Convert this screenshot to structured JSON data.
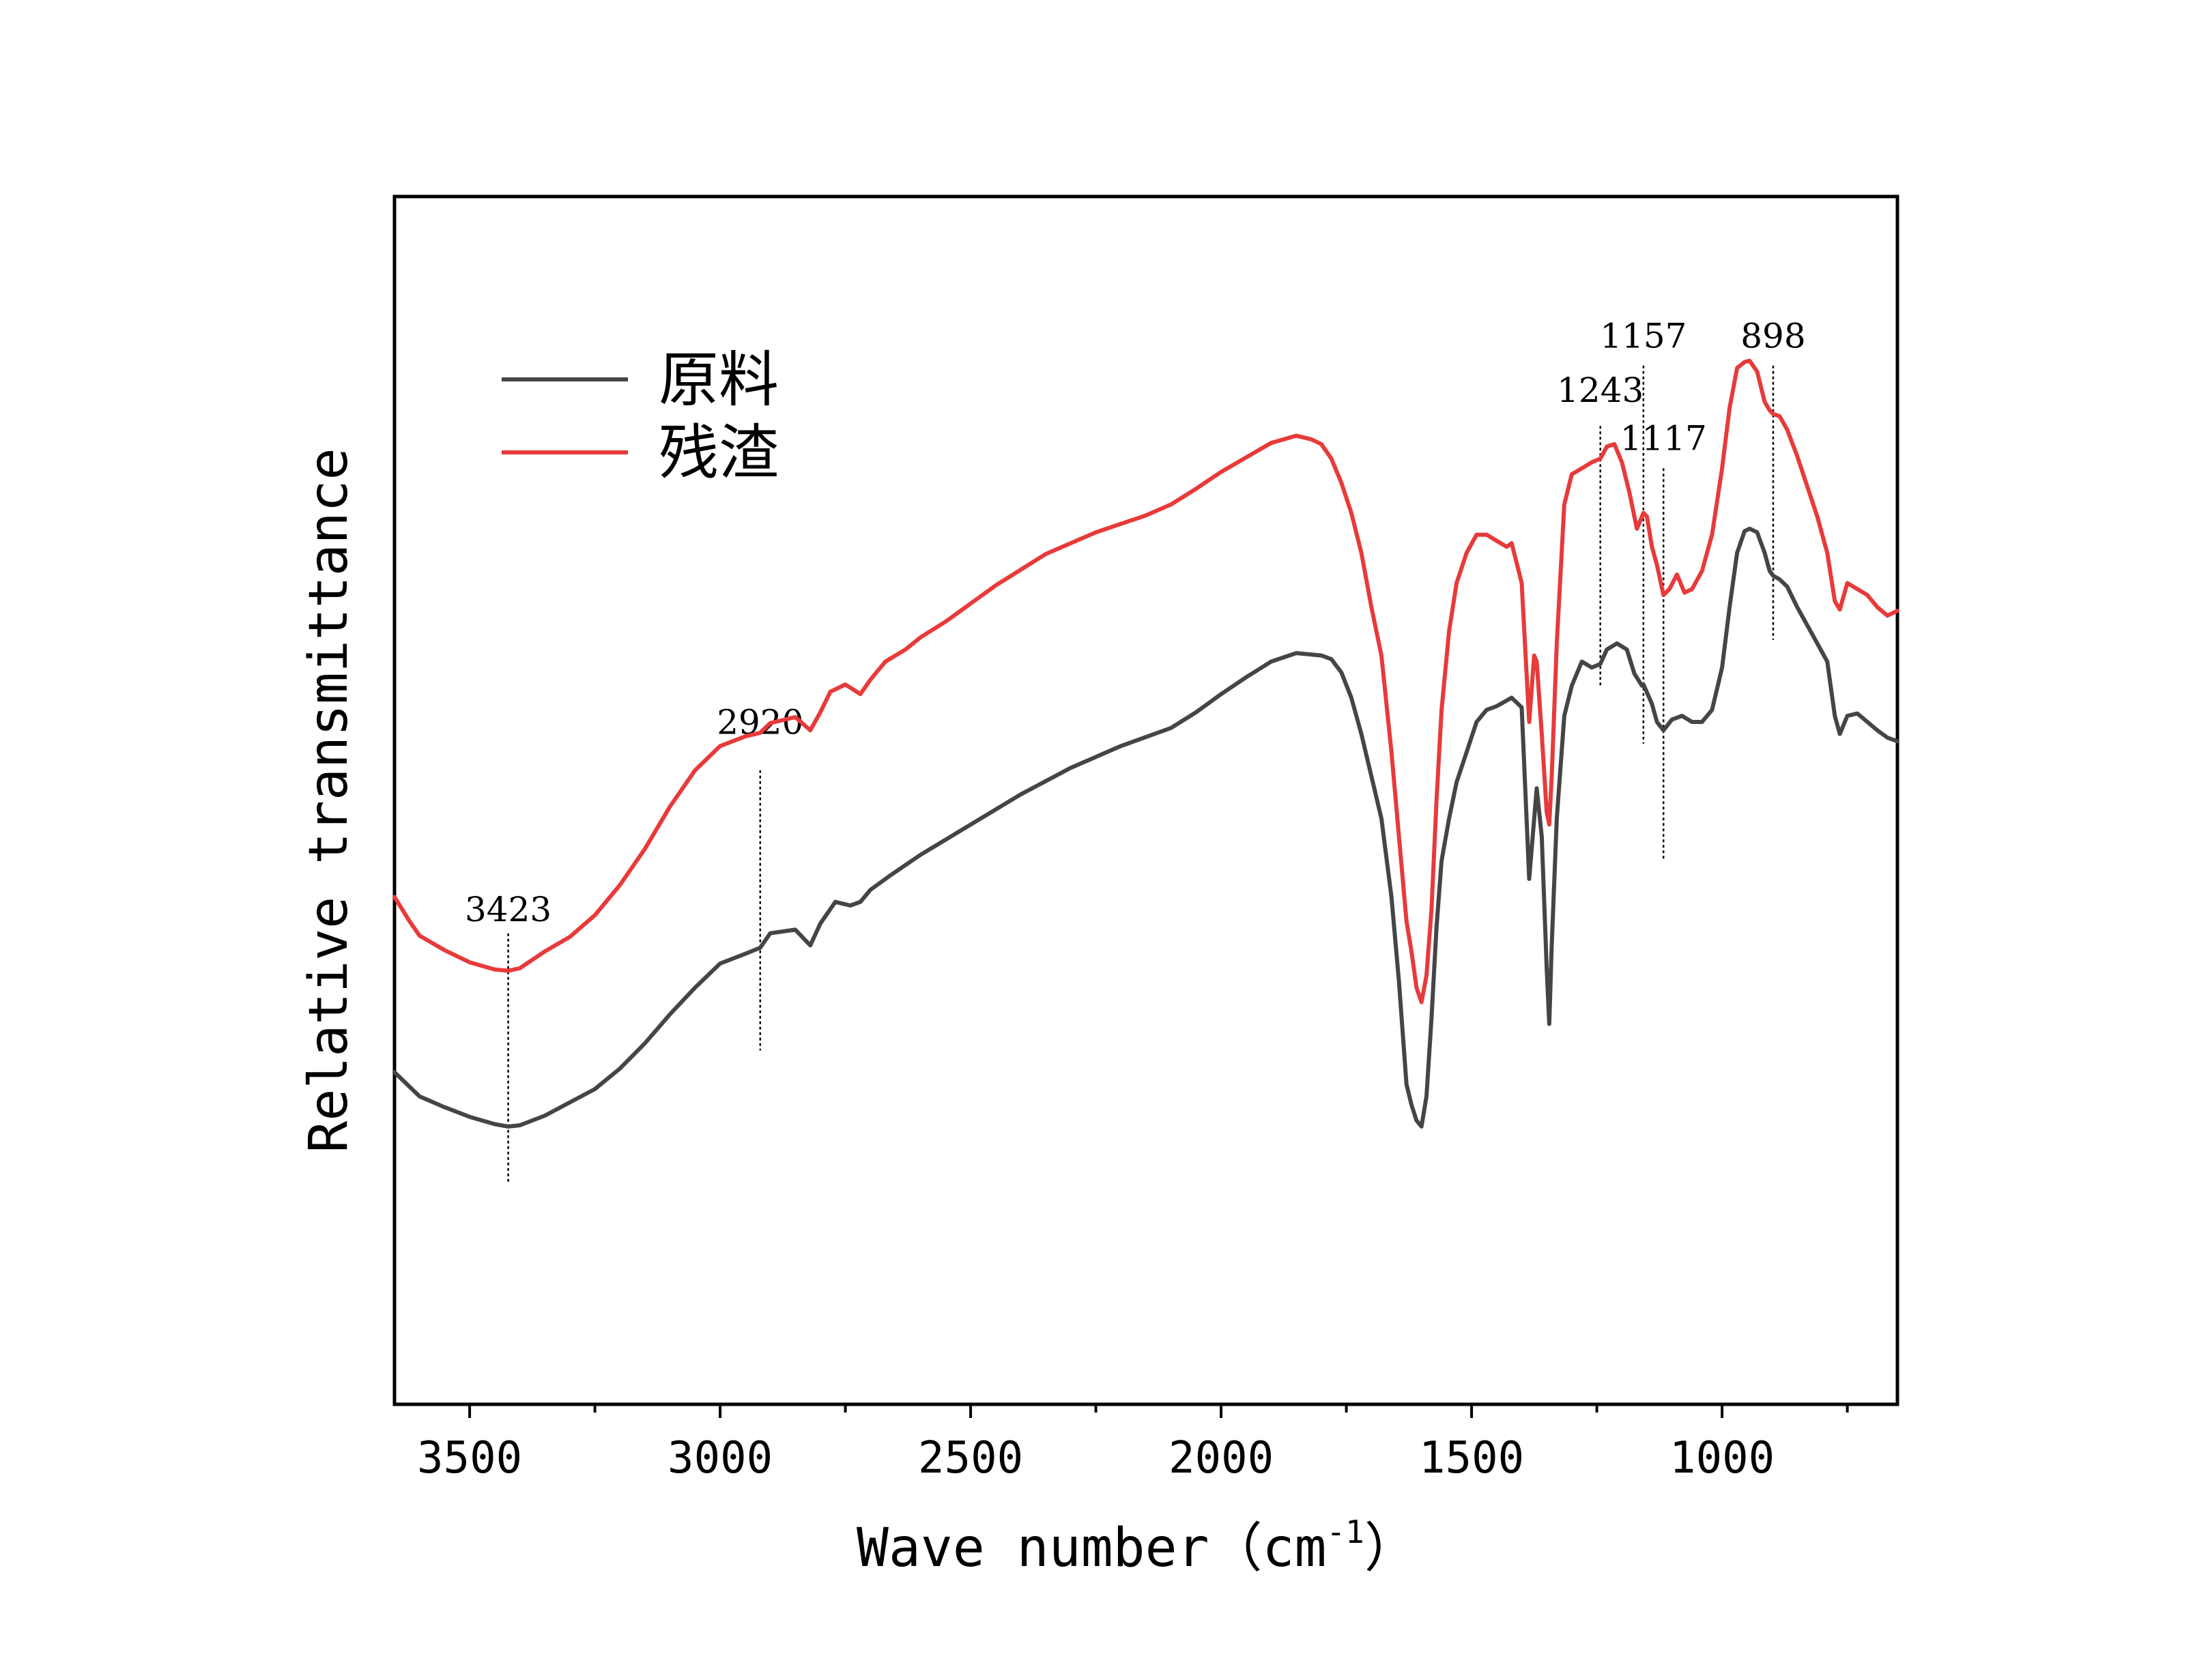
{
  "chart_data": {
    "type": "line",
    "title": "",
    "xlabel": "Wave number（cm",
    "xlabel_unit_sup": "-1",
    "xlabel_close": "）",
    "ylabel": "Relative transmittance",
    "xlim": [
      3650,
      650
    ],
    "ylim": [
      0,
      100
    ],
    "x_reversed": true,
    "y_ticks_shown": false,
    "grid": false,
    "legend_position": "upper-left",
    "x_ticks": [
      {
        "value": 3500,
        "label": "3500"
      },
      {
        "value": 3000,
        "label": "3000"
      },
      {
        "value": 2500,
        "label": "2500"
      },
      {
        "value": 2000,
        "label": "2000"
      },
      {
        "value": 1500,
        "label": "1500"
      },
      {
        "value": 1000,
        "label": "1000"
      }
    ],
    "minor_x_ticks": [
      3250,
      2750,
      2250,
      1750,
      1250,
      750
    ],
    "series": [
      {
        "name": "原料",
        "color": "#454545",
        "points": [
          [
            3650,
            27.5
          ],
          [
            3600,
            25.5
          ],
          [
            3550,
            24.6
          ],
          [
            3500,
            23.8
          ],
          [
            3450,
            23.2
          ],
          [
            3423,
            23.0
          ],
          [
            3400,
            23.1
          ],
          [
            3350,
            23.9
          ],
          [
            3300,
            25.0
          ],
          [
            3250,
            26.1
          ],
          [
            3200,
            27.8
          ],
          [
            3150,
            29.9
          ],
          [
            3100,
            32.3
          ],
          [
            3050,
            34.5
          ],
          [
            3000,
            36.5
          ],
          [
            2950,
            37.3
          ],
          [
            2920,
            37.8
          ],
          [
            2900,
            39.0
          ],
          [
            2850,
            39.3
          ],
          [
            2820,
            38.0
          ],
          [
            2800,
            39.8
          ],
          [
            2770,
            41.6
          ],
          [
            2740,
            41.3
          ],
          [
            2720,
            41.6
          ],
          [
            2700,
            42.6
          ],
          [
            2660,
            43.8
          ],
          [
            2600,
            45.5
          ],
          [
            2500,
            48.0
          ],
          [
            2400,
            50.5
          ],
          [
            2300,
            52.7
          ],
          [
            2200,
            54.5
          ],
          [
            2100,
            56.0
          ],
          [
            2050,
            57.3
          ],
          [
            2000,
            58.8
          ],
          [
            1950,
            60.2
          ],
          [
            1900,
            61.5
          ],
          [
            1850,
            62.2
          ],
          [
            1800,
            62.0
          ],
          [
            1780,
            61.7
          ],
          [
            1760,
            60.6
          ],
          [
            1740,
            58.5
          ],
          [
            1720,
            55.5
          ],
          [
            1700,
            52.0
          ],
          [
            1680,
            48.5
          ],
          [
            1660,
            42.0
          ],
          [
            1645,
            35.0
          ],
          [
            1630,
            26.5
          ],
          [
            1620,
            24.8
          ],
          [
            1610,
            23.5
          ],
          [
            1600,
            23.0
          ],
          [
            1590,
            25.5
          ],
          [
            1580,
            32.0
          ],
          [
            1570,
            39.5
          ],
          [
            1560,
            45.0
          ],
          [
            1545,
            48.5
          ],
          [
            1530,
            51.5
          ],
          [
            1510,
            54.0
          ],
          [
            1490,
            56.5
          ],
          [
            1470,
            57.5
          ],
          [
            1450,
            57.8
          ],
          [
            1420,
            58.5
          ],
          [
            1400,
            57.7
          ],
          [
            1385,
            43.5
          ],
          [
            1375,
            48.5
          ],
          [
            1370,
            51.0
          ],
          [
            1360,
            47.0
          ],
          [
            1350,
            36.0
          ],
          [
            1345,
            31.5
          ],
          [
            1340,
            38.0
          ],
          [
            1330,
            48.5
          ],
          [
            1315,
            57.0
          ],
          [
            1300,
            59.5
          ],
          [
            1280,
            61.5
          ],
          [
            1260,
            61.0
          ],
          [
            1243,
            61.3
          ],
          [
            1230,
            62.5
          ],
          [
            1210,
            63.0
          ],
          [
            1190,
            62.5
          ],
          [
            1175,
            60.5
          ],
          [
            1160,
            59.5
          ],
          [
            1157,
            59.6
          ],
          [
            1140,
            58.0
          ],
          [
            1130,
            56.5
          ],
          [
            1117,
            55.8
          ],
          [
            1100,
            56.7
          ],
          [
            1080,
            57.0
          ],
          [
            1060,
            56.5
          ],
          [
            1040,
            56.5
          ],
          [
            1020,
            57.5
          ],
          [
            1000,
            61.0
          ],
          [
            985,
            66.0
          ],
          [
            970,
            70.5
          ],
          [
            955,
            72.3
          ],
          [
            945,
            72.5
          ],
          [
            930,
            72.2
          ],
          [
            915,
            70.5
          ],
          [
            905,
            69.0
          ],
          [
            898,
            68.6
          ],
          [
            885,
            68.3
          ],
          [
            870,
            67.7
          ],
          [
            850,
            66.0
          ],
          [
            830,
            64.5
          ],
          [
            810,
            63.0
          ],
          [
            790,
            61.5
          ],
          [
            775,
            57.0
          ],
          [
            765,
            55.5
          ],
          [
            750,
            57.0
          ],
          [
            730,
            57.2
          ],
          [
            710,
            56.5
          ],
          [
            690,
            55.8
          ],
          [
            670,
            55.2
          ],
          [
            650,
            54.9
          ]
        ]
      },
      {
        "name": "残渣",
        "color": "#e83a3a",
        "points": [
          [
            3650,
            42.0
          ],
          [
            3620,
            40.0
          ],
          [
            3600,
            38.8
          ],
          [
            3550,
            37.6
          ],
          [
            3500,
            36.6
          ],
          [
            3450,
            36.0
          ],
          [
            3423,
            35.9
          ],
          [
            3400,
            36.1
          ],
          [
            3350,
            37.5
          ],
          [
            3300,
            38.7
          ],
          [
            3250,
            40.5
          ],
          [
            3200,
            43.0
          ],
          [
            3150,
            46.0
          ],
          [
            3100,
            49.5
          ],
          [
            3050,
            52.5
          ],
          [
            3000,
            54.5
          ],
          [
            2950,
            55.3
          ],
          [
            2920,
            55.6
          ],
          [
            2900,
            56.4
          ],
          [
            2850,
            56.9
          ],
          [
            2820,
            55.8
          ],
          [
            2800,
            57.3
          ],
          [
            2780,
            59.0
          ],
          [
            2750,
            59.6
          ],
          [
            2720,
            58.8
          ],
          [
            2700,
            60.0
          ],
          [
            2670,
            61.5
          ],
          [
            2630,
            62.5
          ],
          [
            2600,
            63.5
          ],
          [
            2550,
            64.8
          ],
          [
            2500,
            66.3
          ],
          [
            2450,
            67.8
          ],
          [
            2400,
            69.1
          ],
          [
            2350,
            70.4
          ],
          [
            2300,
            71.3
          ],
          [
            2250,
            72.2
          ],
          [
            2200,
            72.9
          ],
          [
            2150,
            73.6
          ],
          [
            2100,
            74.5
          ],
          [
            2050,
            75.8
          ],
          [
            2000,
            77.2
          ],
          [
            1950,
            78.4
          ],
          [
            1900,
            79.6
          ],
          [
            1850,
            80.2
          ],
          [
            1820,
            79.9
          ],
          [
            1800,
            79.5
          ],
          [
            1780,
            78.3
          ],
          [
            1760,
            76.3
          ],
          [
            1740,
            73.8
          ],
          [
            1720,
            70.5
          ],
          [
            1700,
            66.0
          ],
          [
            1680,
            62.0
          ],
          [
            1660,
            54.0
          ],
          [
            1645,
            47.0
          ],
          [
            1630,
            40.0
          ],
          [
            1620,
            37.5
          ],
          [
            1610,
            34.5
          ],
          [
            1600,
            33.3
          ],
          [
            1590,
            35.5
          ],
          [
            1580,
            41.0
          ],
          [
            1570,
            50.0
          ],
          [
            1560,
            57.5
          ],
          [
            1545,
            64.0
          ],
          [
            1530,
            68.0
          ],
          [
            1510,
            70.5
          ],
          [
            1490,
            72.0
          ],
          [
            1470,
            72.0
          ],
          [
            1450,
            71.5
          ],
          [
            1430,
            71.0
          ],
          [
            1420,
            71.3
          ],
          [
            1400,
            68.0
          ],
          [
            1385,
            56.5
          ],
          [
            1375,
            62.0
          ],
          [
            1370,
            61.5
          ],
          [
            1360,
            55.5
          ],
          [
            1350,
            49.0
          ],
          [
            1345,
            48.0
          ],
          [
            1340,
            52.0
          ],
          [
            1330,
            63.0
          ],
          [
            1315,
            74.5
          ],
          [
            1300,
            77.0
          ],
          [
            1280,
            77.5
          ],
          [
            1260,
            78.0
          ],
          [
            1243,
            78.3
          ],
          [
            1230,
            79.3
          ],
          [
            1215,
            79.5
          ],
          [
            1200,
            78.0
          ],
          [
            1185,
            75.5
          ],
          [
            1170,
            72.5
          ],
          [
            1157,
            73.8
          ],
          [
            1150,
            73.5
          ],
          [
            1140,
            71.0
          ],
          [
            1130,
            69.5
          ],
          [
            1117,
            67.0
          ],
          [
            1105,
            67.5
          ],
          [
            1090,
            68.7
          ],
          [
            1075,
            67.2
          ],
          [
            1060,
            67.5
          ],
          [
            1040,
            69.0
          ],
          [
            1020,
            72.0
          ],
          [
            1000,
            77.5
          ],
          [
            985,
            82.5
          ],
          [
            970,
            85.8
          ],
          [
            955,
            86.3
          ],
          [
            945,
            86.4
          ],
          [
            930,
            85.5
          ],
          [
            915,
            83.0
          ],
          [
            905,
            82.3
          ],
          [
            898,
            82.0
          ],
          [
            885,
            81.8
          ],
          [
            870,
            80.7
          ],
          [
            850,
            78.5
          ],
          [
            830,
            76.0
          ],
          [
            810,
            73.5
          ],
          [
            790,
            70.5
          ],
          [
            775,
            66.5
          ],
          [
            765,
            65.8
          ],
          [
            750,
            68.0
          ],
          [
            730,
            67.5
          ],
          [
            710,
            67.0
          ],
          [
            690,
            66.0
          ],
          [
            670,
            65.3
          ],
          [
            650,
            65.7
          ]
        ]
      }
    ],
    "annotations": [
      {
        "label": "3423",
        "x": 3423,
        "line_top": 39.0,
        "line_bottom": 18.3,
        "label_y": 40.0
      },
      {
        "label": "2920",
        "x": 2920,
        "line_top": 52.5,
        "line_bottom": 29.3,
        "label_y": 55.5
      },
      {
        "label": "1243",
        "x": 1243,
        "line_top": 81.0,
        "line_bottom": 59.5,
        "label_y": 83.0
      },
      {
        "label": "1157",
        "x": 1157,
        "line_top": 86.0,
        "line_bottom": 54.7,
        "label_y": 87.5
      },
      {
        "label": "1117",
        "x": 1117,
        "line_top": 77.5,
        "line_bottom": 45.1,
        "label_y": 79.0
      },
      {
        "label": "898",
        "x": 898,
        "line_top": 86.0,
        "line_bottom": 63.3,
        "label_y": 87.5
      }
    ]
  }
}
